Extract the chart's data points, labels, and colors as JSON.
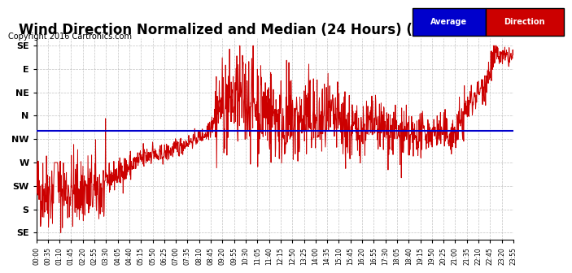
{
  "title": "Wind Direction Normalized and Median (24 Hours) (New) 20160305",
  "copyright": "Copyright 2016 Cartronics.com",
  "ytick_labels": [
    "SE",
    "E",
    "NE",
    "N",
    "NW",
    "W",
    "SW",
    "S",
    "SE"
  ],
  "ytick_values": [
    8,
    7,
    6,
    5,
    4,
    3,
    2,
    1,
    0
  ],
  "ylim": [
    -0.3,
    8.3
  ],
  "average_line_y": 4.35,
  "average_line_color": "#0000cc",
  "direction_line_color": "#cc0000",
  "background_color": "#ffffff",
  "grid_color": "#aaaaaa",
  "title_fontsize": 12,
  "legend_average_bg": "#0000cc",
  "legend_direction_bg": "#cc0000",
  "legend_text_color": "#ffffff"
}
